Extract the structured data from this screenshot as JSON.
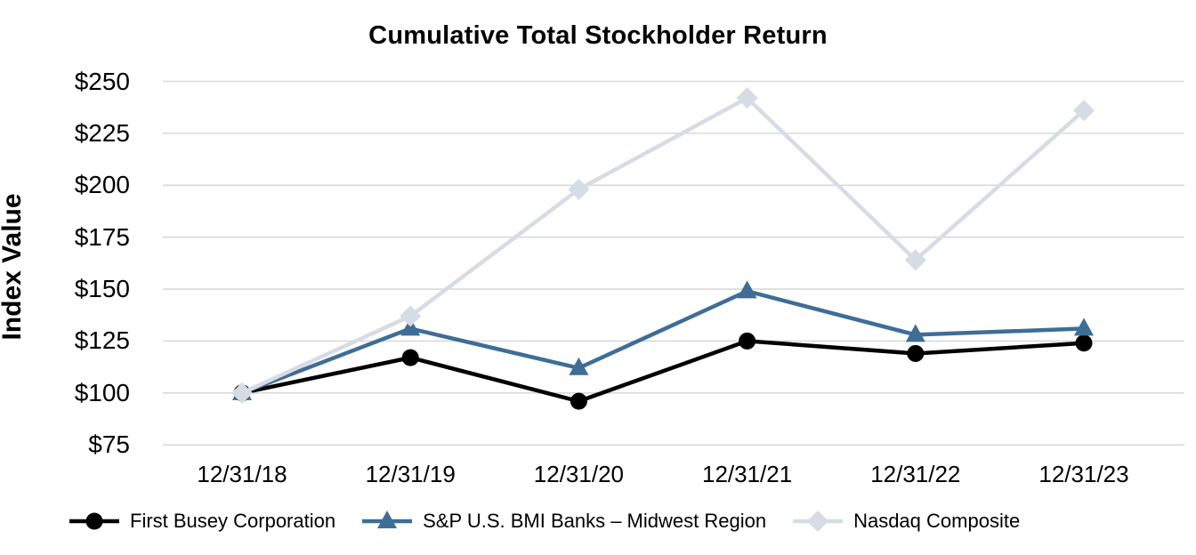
{
  "title": "Cumulative Total Stockholder Return",
  "chart_data": {
    "type": "line",
    "title": "Cumulative Total Stockholder Return",
    "xlabel": "",
    "ylabel": "Index Value",
    "categories": [
      "12/31/18",
      "12/31/19",
      "12/31/20",
      "12/31/21",
      "12/31/22",
      "12/31/23"
    ],
    "ytick_labels": [
      "$250",
      "$225",
      "$200",
      "$175",
      "$150",
      "$125",
      "$100",
      "$75"
    ],
    "ylim": [
      75,
      250
    ],
    "grid": true,
    "legend_position": "bottom",
    "series": [
      {
        "name": "First Busey Corporation",
        "marker": "circle",
        "color": "#000000",
        "values": [
          100,
          117,
          96,
          125,
          119,
          124
        ]
      },
      {
        "name": "S&P U.S. BMI Banks – Midwest Region",
        "marker": "triangle",
        "color": "#3E6D96",
        "values": [
          100,
          131,
          112,
          149,
          128,
          131
        ]
      },
      {
        "name": "Nasdaq Composite",
        "marker": "diamond",
        "color": "#D6DCE4",
        "values": [
          100,
          137,
          198,
          242,
          164,
          236
        ]
      }
    ]
  },
  "colors": {
    "gridline": "#D9D9D9",
    "background": "#FFFFFF",
    "text": "#000000"
  }
}
